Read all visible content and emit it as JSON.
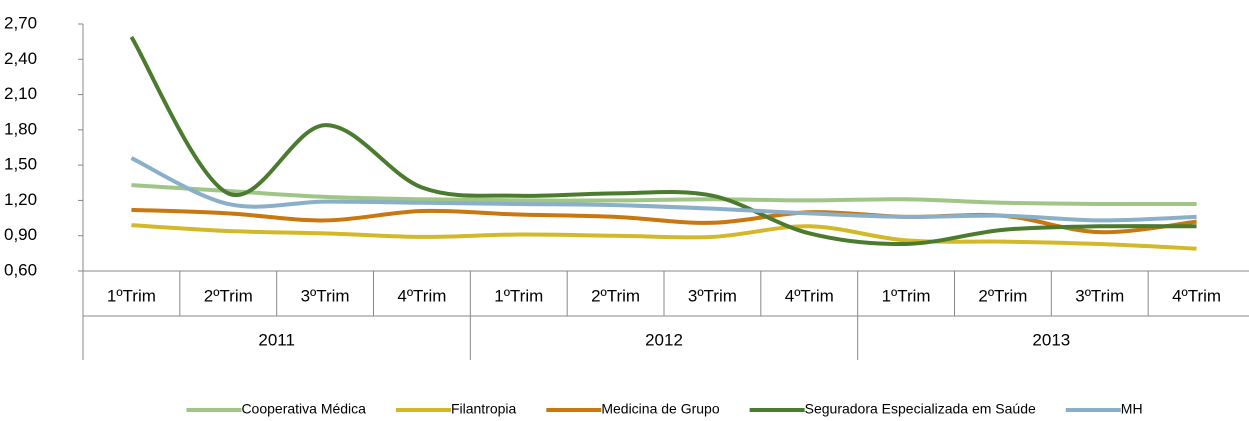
{
  "chart_data": {
    "type": "line",
    "categories": [
      "1ºTrim",
      "2ºTrim",
      "3ºTrim",
      "4ºTrim",
      "1ºTrim",
      "2ºTrim",
      "3ºTrim",
      "4ºTrim",
      "1ºTrim",
      "2ºTrim",
      "3ºTrim",
      "4ºTrim"
    ],
    "groups": [
      "2011",
      "2012",
      "2013"
    ],
    "series": [
      {
        "name": "Cooperativa Médica",
        "color": "#9fc587",
        "values": [
          1.33,
          1.28,
          1.23,
          1.21,
          1.2,
          1.2,
          1.21,
          1.2,
          1.21,
          1.18,
          1.17,
          1.17
        ]
      },
      {
        "name": "Filantropia",
        "color": "#d3b82a",
        "values": [
          0.99,
          0.94,
          0.92,
          0.89,
          0.91,
          0.9,
          0.89,
          0.98,
          0.86,
          0.85,
          0.83,
          0.79
        ]
      },
      {
        "name": "Medicina de Grupo",
        "color": "#c9770f",
        "values": [
          1.12,
          1.09,
          1.03,
          1.11,
          1.08,
          1.06,
          1.01,
          1.1,
          1.06,
          1.07,
          0.93,
          1.02
        ]
      },
      {
        "name": "Seguradora Especializada em Saúde",
        "color": "#4b7b2f",
        "values": [
          2.59,
          1.26,
          1.84,
          1.31,
          1.24,
          1.26,
          1.24,
          0.92,
          0.83,
          0.95,
          0.98,
          0.98
        ]
      },
      {
        "name": "MH",
        "color": "#8aafc9",
        "values": [
          1.56,
          1.17,
          1.19,
          1.18,
          1.17,
          1.16,
          1.13,
          1.09,
          1.06,
          1.07,
          1.03,
          1.06
        ]
      }
    ],
    "ylim": [
      0.6,
      2.7
    ],
    "yticks": [
      {
        "value": 0.6,
        "label": "0,60"
      },
      {
        "value": 0.9,
        "label": "0,90"
      },
      {
        "value": 1.2,
        "label": "1,20"
      },
      {
        "value": 1.5,
        "label": "1,50"
      },
      {
        "value": 1.8,
        "label": "1,80"
      },
      {
        "value": 2.1,
        "label": "2,10"
      },
      {
        "value": 2.4,
        "label": "2,40"
      },
      {
        "value": 2.7,
        "label": "2,70"
      }
    ],
    "legend": "bottom"
  }
}
